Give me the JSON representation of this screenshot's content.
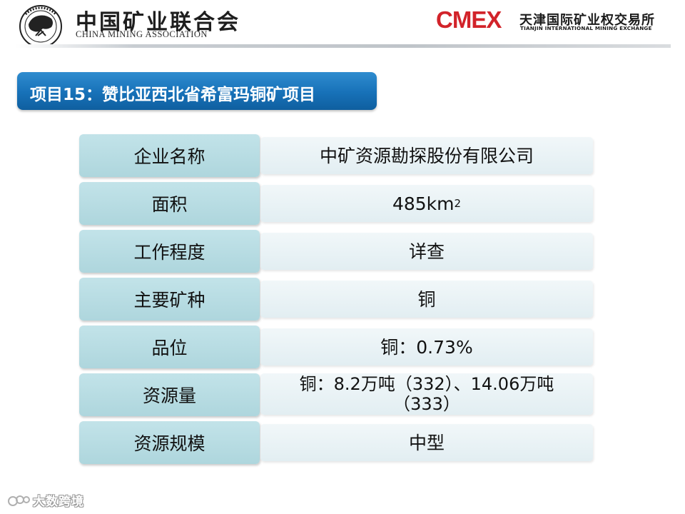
{
  "header": {
    "association_name_cn": "中国矿业联合会",
    "association_name_en": "CHINA MINING ASSOCIATION",
    "exchange_logo": "CMEX",
    "exchange_name_cn": "天津国际矿业权交易所",
    "exchange_name_en": "TIANJIN INTERNATIONAL MINING EXCHANGE"
  },
  "title": "项目15：赞比亚西北省希富玛铜矿项目",
  "rows": [
    {
      "label": "企业名称",
      "value": "中矿资源勘探股份有限公司"
    },
    {
      "label": "面积",
      "value": "485km",
      "superscript": "2"
    },
    {
      "label": "工作程度",
      "value": "详查"
    },
    {
      "label": "主要矿种",
      "value": "铜"
    },
    {
      "label": "品位",
      "value": "铜：0.73%"
    },
    {
      "label": "资源量",
      "value": "铜：8.2万吨（332）、14.06万吨（333）"
    },
    {
      "label": "资源规模",
      "value": "中型"
    }
  ],
  "watermark": {
    "text": "大数跨境",
    "icon": "kids-logo-icon"
  },
  "colors": {
    "title_banner": "#1771b8",
    "label_cell": "#b8dce3",
    "value_cell": "#e8f2f5",
    "cmex_red": "#d2232a"
  }
}
